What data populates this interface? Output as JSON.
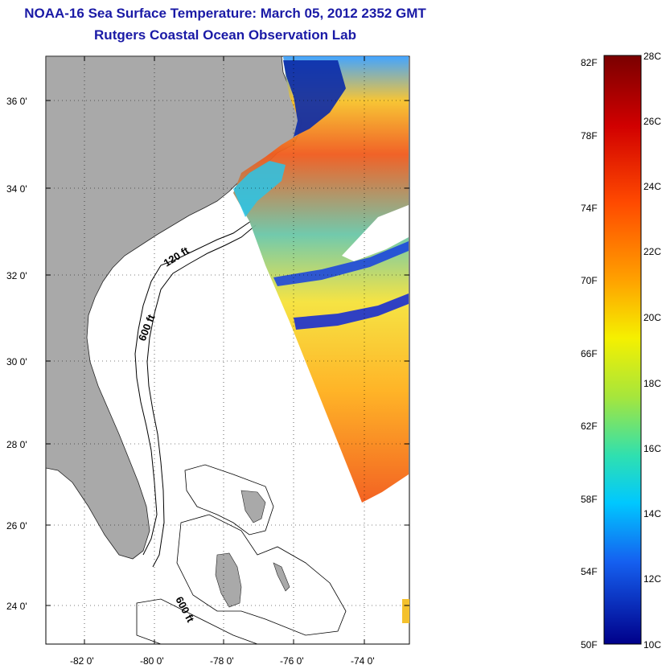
{
  "header": {
    "title": "NOAA-16 Sea Surface Temperature:  March 05, 2012 2352 GMT",
    "subtitle": "Rutgers Coastal Ocean Observation Lab"
  },
  "map": {
    "lat_labels": [
      "36 0'",
      "34 0'",
      "32 0'",
      "30 0'",
      "28 0'",
      "26 0'",
      "24 0'"
    ],
    "lon_labels": [
      "-82 0'",
      "-80 0'",
      "-78 0'",
      "-76 0'",
      "-74 0'"
    ],
    "contour_labels": [
      "120 ft",
      "600 ft",
      "600 ft"
    ],
    "land_color": "#a9a9a9",
    "ocean_color": "#ffffff"
  },
  "colorbar": {
    "fahrenheit": [
      "82F",
      "78F",
      "74F",
      "70F",
      "66F",
      "62F",
      "58F",
      "54F",
      "50F"
    ],
    "celsius": [
      "28C",
      "26C",
      "24C",
      "22C",
      "20C",
      "18C",
      "16C",
      "14C",
      "12C",
      "10C"
    ]
  }
}
